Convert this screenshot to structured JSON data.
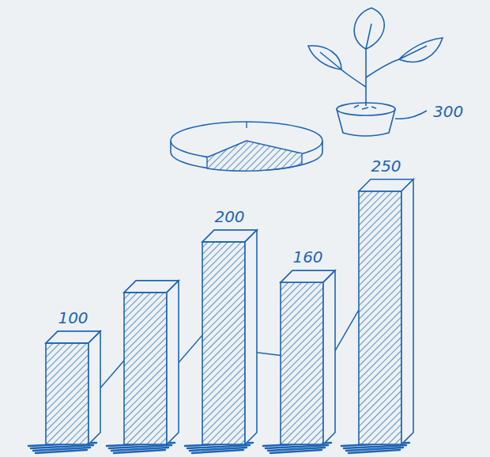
{
  "chart_data": {
    "type": "bar",
    "categories": [
      null,
      null,
      null,
      null,
      null
    ],
    "values": [
      100,
      150,
      200,
      160,
      250
    ],
    "value_labels": [
      "100",
      null,
      "200",
      "160",
      "250"
    ],
    "data_labels": true,
    "ylim": [
      0,
      260
    ],
    "tick_labels": false,
    "color": "#1e64b4",
    "annotations": [
      "300"
    ]
  }
}
